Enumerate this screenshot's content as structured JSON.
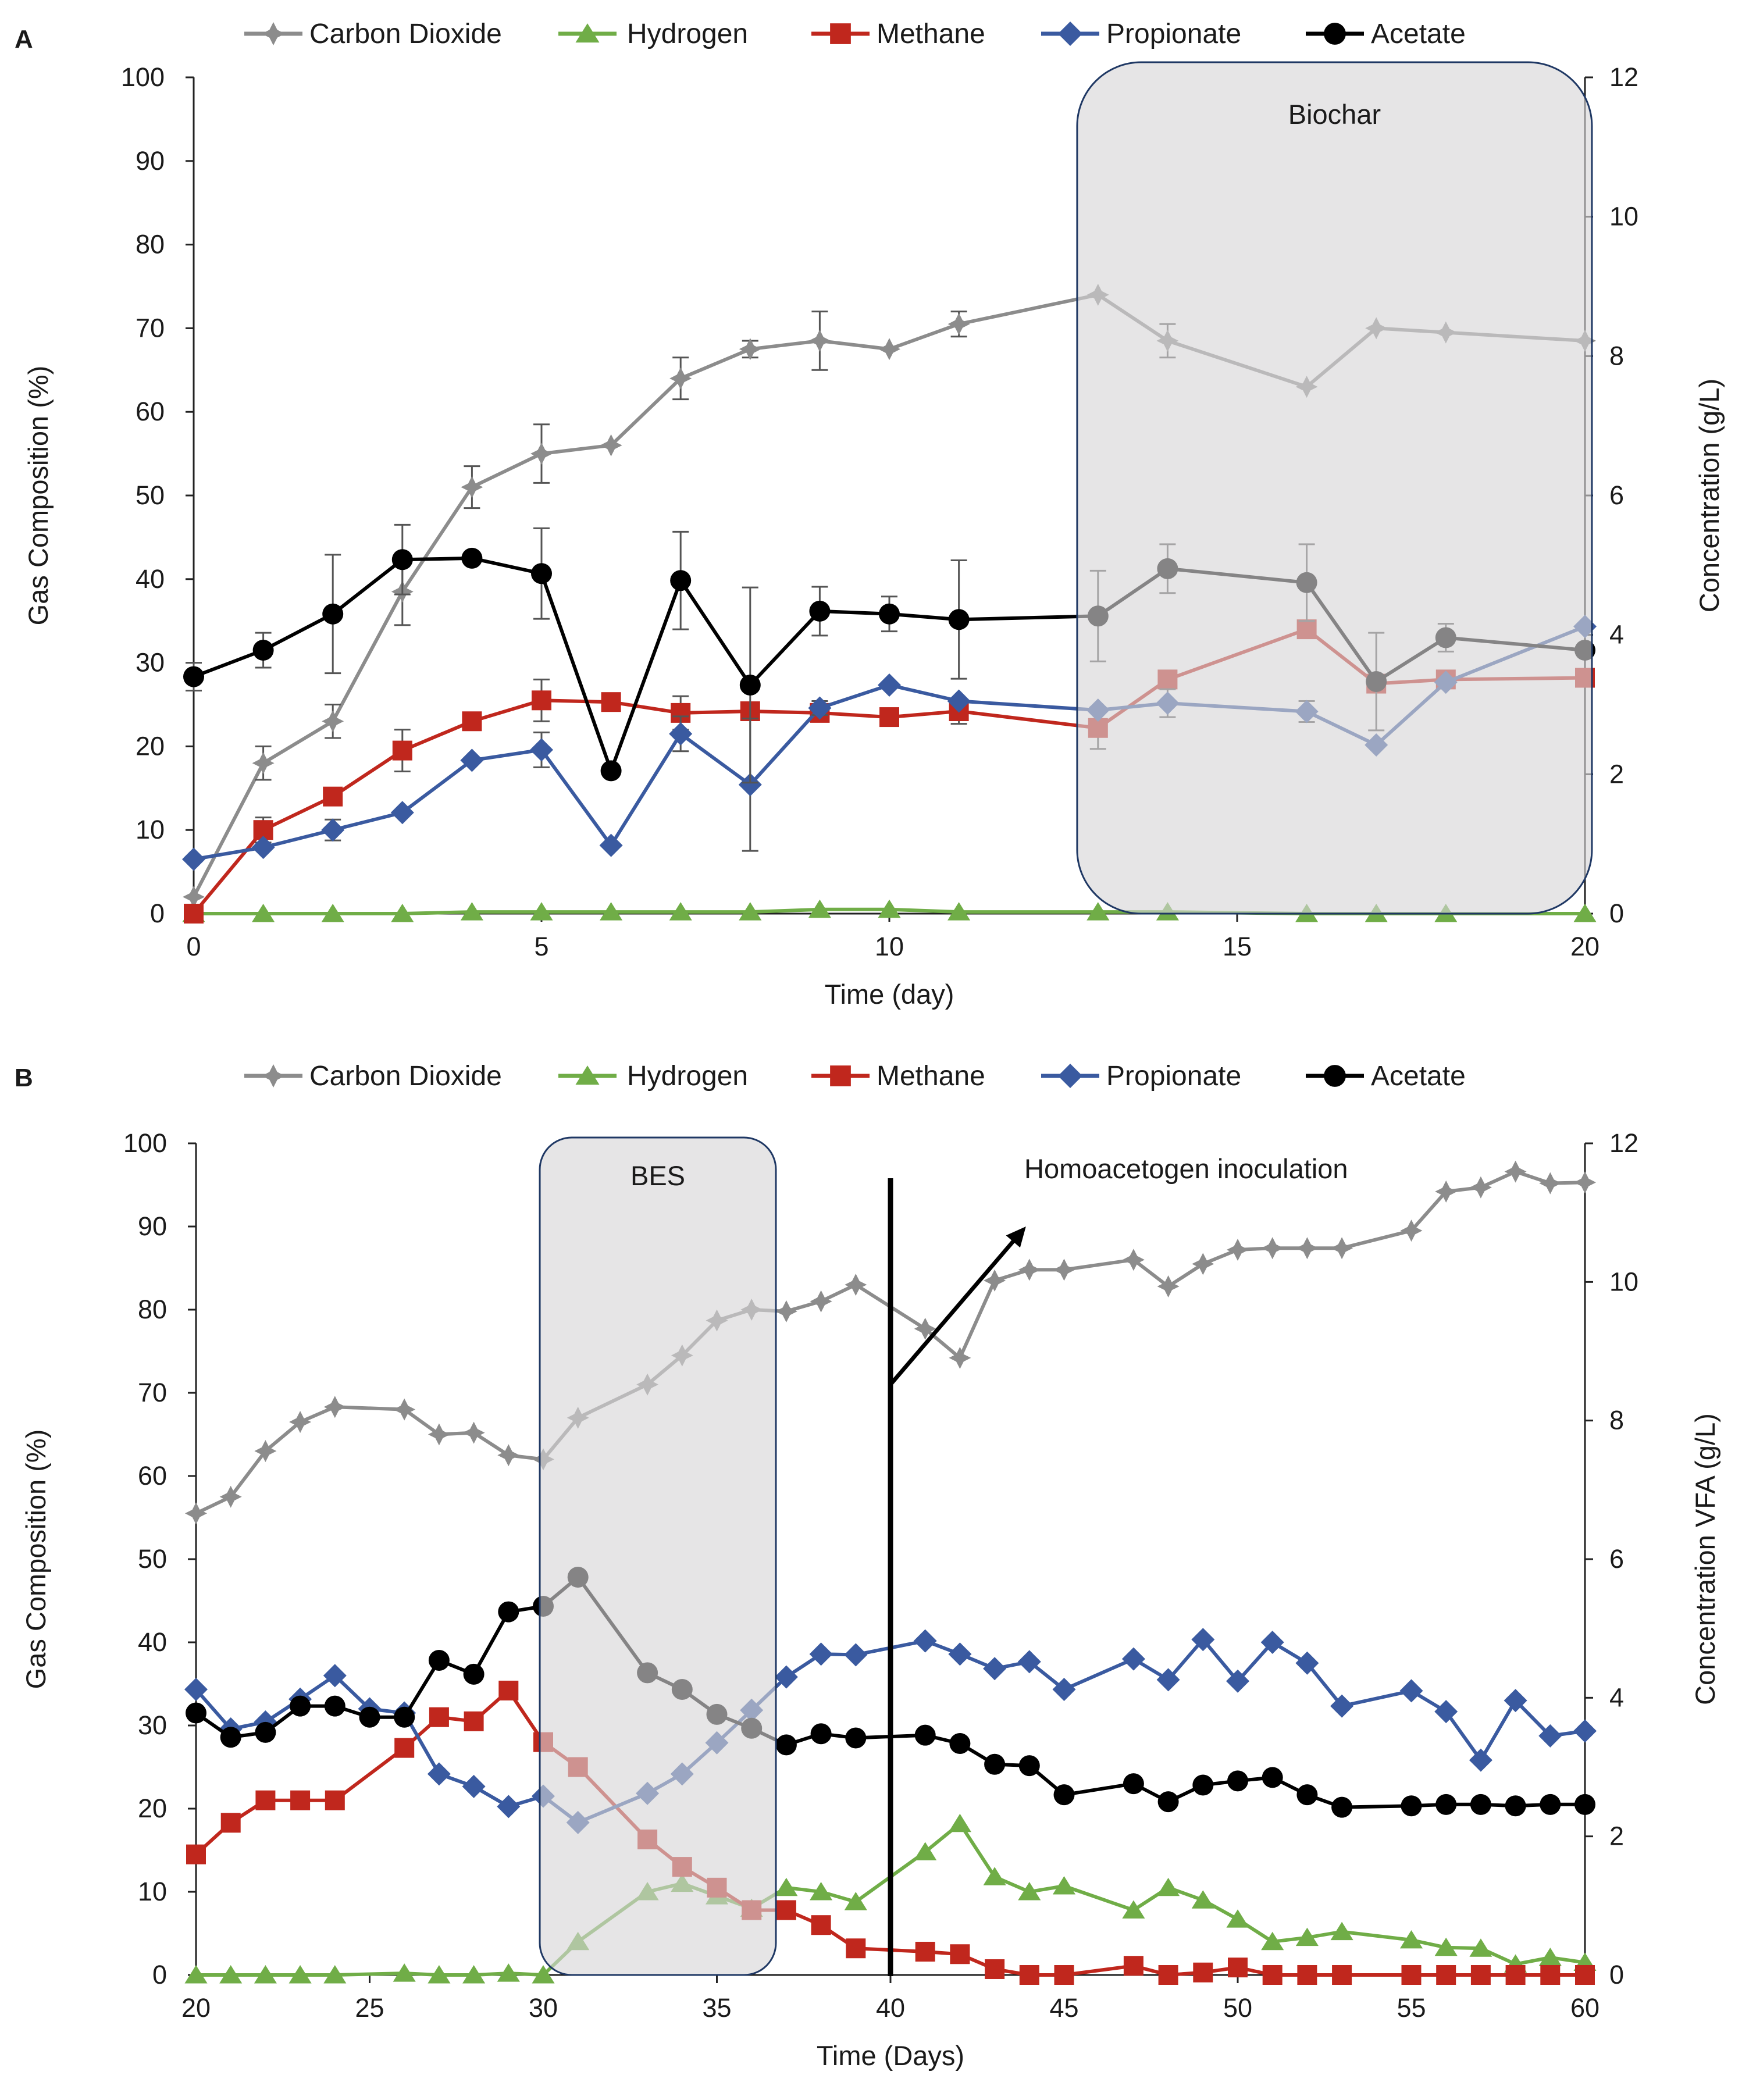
{
  "colors": {
    "co2": "#8c8c8c",
    "h2": "#70ad47",
    "ch4": "#c0271d",
    "prop": "#3a5aa0",
    "acet": "#000000",
    "shade_fill": "#d6d5d6",
    "shade_stroke": "#1f3864"
  },
  "chart_data": [
    {
      "type": "line",
      "panel": "A",
      "xlabel": "Time (day)",
      "ylabel": "Gas Composition (%)",
      "y2label": "Concentration (g/L)",
      "xlim": [
        0,
        20
      ],
      "ylim": [
        0,
        100
      ],
      "y2lim": [
        0,
        12
      ],
      "xticks": [
        "0",
        "5",
        "10",
        "15",
        "20"
      ],
      "yticks": [
        "0",
        "10",
        "20",
        "30",
        "40",
        "50",
        "60",
        "70",
        "80",
        "90",
        "100"
      ],
      "y2ticks": [
        "0",
        "2",
        "4",
        "6",
        "8",
        "10",
        "12"
      ],
      "legend": [
        "Carbon Dioxide",
        "Hydrogen",
        "Methane",
        "Propionate",
        "Acetate"
      ],
      "shade": {
        "label": "Biochar",
        "x0": 12.7,
        "x1": 20.1
      },
      "series": [
        {
          "name": "Carbon Dioxide",
          "axis": "left",
          "marker": "star",
          "color_key": "co2",
          "x": [
            0,
            1,
            2,
            3,
            4,
            5,
            6,
            7,
            8,
            9,
            10,
            11,
            13,
            14,
            16,
            17,
            18,
            20
          ],
          "y": [
            2,
            18,
            23,
            38.5,
            51,
            55,
            56,
            64,
            67.5,
            68.5,
            67.5,
            70.5,
            74,
            68.5,
            63,
            70,
            69.5,
            68.5
          ],
          "err": [
            0,
            2,
            2,
            4,
            2.5,
            3.5,
            0,
            2.5,
            1,
            3.5,
            0,
            1.5,
            0,
            2,
            0,
            0,
            0,
            0
          ]
        },
        {
          "name": "Hydrogen",
          "axis": "left",
          "marker": "triangle",
          "color_key": "h2",
          "x": [
            0,
            1,
            2,
            3,
            4,
            5,
            6,
            7,
            8,
            9,
            10,
            11,
            13,
            14,
            16,
            17,
            18,
            20
          ],
          "y": [
            0,
            0,
            0,
            0,
            0.2,
            0.2,
            0.2,
            0.2,
            0.2,
            0.5,
            0.5,
            0.2,
            0.2,
            0.2,
            0,
            0,
            0,
            0
          ],
          "err": []
        },
        {
          "name": "Methane",
          "axis": "left",
          "marker": "square",
          "color_key": "ch4",
          "x": [
            0,
            1,
            2,
            3,
            4,
            5,
            6,
            7,
            8,
            9,
            10,
            11,
            13,
            14,
            16,
            17,
            18,
            20
          ],
          "y": [
            0,
            10,
            14,
            19.5,
            23,
            25.5,
            25.3,
            24,
            24.2,
            24,
            23.5,
            24.2,
            22.2,
            28,
            34,
            27.5,
            28,
            28.2
          ],
          "err": [
            0,
            1.5,
            1,
            2.5,
            1,
            2.5,
            0,
            2,
            0,
            0,
            1,
            1.5,
            2.5,
            0,
            0,
            0,
            0,
            0
          ]
        },
        {
          "name": "Propionate",
          "axis": "right",
          "marker": "diamond",
          "color_key": "prop",
          "x": [
            0,
            1,
            2,
            3,
            4,
            5,
            6,
            7,
            8,
            9,
            10,
            11,
            13,
            14,
            16,
            17,
            18,
            20
          ],
          "y": [
            0.78,
            0.95,
            1.2,
            1.45,
            2.2,
            2.35,
            0.98,
            2.58,
            1.85,
            2.95,
            3.28,
            3.05,
            2.92,
            3.02,
            2.9,
            2.42,
            3.32,
            4.12
          ],
          "err": [
            0,
            0,
            0.15,
            0,
            0,
            0.25,
            0,
            0.25,
            0.95,
            0.1,
            0,
            0,
            0,
            0.2,
            0.15,
            0,
            0,
            0
          ]
        },
        {
          "name": "Acetate",
          "axis": "right",
          "marker": "circle",
          "color_key": "acet",
          "x": [
            0,
            1,
            2,
            3,
            4,
            5,
            6,
            7,
            8,
            9,
            10,
            11,
            13,
            14,
            16,
            17,
            18,
            20
          ],
          "y": [
            3.4,
            3.78,
            4.3,
            5.08,
            5.1,
            4.88,
            2.05,
            4.78,
            3.28,
            4.34,
            4.3,
            4.22,
            4.27,
            4.95,
            4.75,
            3.33,
            3.96,
            3.78
          ],
          "err": [
            0.2,
            0.25,
            0.85,
            0.5,
            0,
            0.65,
            0,
            0.7,
            1.4,
            0.35,
            0.25,
            0.85,
            0.65,
            0.35,
            0.55,
            0.7,
            0.2,
            0
          ]
        }
      ]
    },
    {
      "type": "line",
      "panel": "B",
      "xlabel": "Time (Days)",
      "ylabel": "Gas Composition (%)",
      "y2label": "Concentration VFA (g/L)",
      "xlim": [
        20,
        60
      ],
      "ylim": [
        0,
        100
      ],
      "y2lim": [
        0,
        12
      ],
      "xticks": [
        "20",
        "25",
        "30",
        "35",
        "40",
        "45",
        "50",
        "55",
        "60"
      ],
      "yticks": [
        "0",
        "10",
        "20",
        "30",
        "40",
        "50",
        "60",
        "70",
        "80",
        "90",
        "100"
      ],
      "y2ticks": [
        "0",
        "2",
        "4",
        "6",
        "8",
        "10",
        "12"
      ],
      "legend": [
        "Carbon Dioxide",
        "Hydrogen",
        "Methane",
        "Propionate",
        "Acetate"
      ],
      "shade": {
        "label": "BES",
        "x0": 29.9,
        "x1": 36.7
      },
      "annotation": {
        "text": "Homoacetogen inoculation",
        "line_x": 40,
        "arrow_from": [
          40,
          71
        ],
        "arrow_to": [
          43.9,
          90
        ]
      },
      "series": [
        {
          "name": "Carbon Dioxide",
          "axis": "left",
          "marker": "star",
          "color_key": "co2",
          "x": [
            20,
            21,
            22,
            23,
            24,
            26,
            27,
            28,
            29,
            30,
            31,
            33,
            34,
            35,
            36,
            37,
            38,
            39,
            41,
            42,
            43,
            44,
            45,
            47,
            48,
            49,
            50,
            51,
            52,
            53,
            55,
            56,
            57,
            58,
            59,
            60
          ],
          "y": [
            55.5,
            57.5,
            63,
            66.5,
            68.3,
            68,
            65,
            65.2,
            62.5,
            62,
            67,
            71,
            74.5,
            78.7,
            80,
            79.8,
            81,
            83,
            77.7,
            74.2,
            83.5,
            84.8,
            84.8,
            86,
            82.8,
            85.5,
            87.2,
            87.4,
            87.4,
            87.4,
            89.5,
            94.2,
            94.7,
            96.6,
            95.2,
            95.3
          ]
        },
        {
          "name": "Hydrogen",
          "axis": "left",
          "marker": "triangle",
          "color_key": "h2",
          "x": [
            20,
            21,
            22,
            23,
            24,
            26,
            27,
            28,
            29,
            30,
            31,
            33,
            34,
            35,
            36,
            37,
            38,
            39,
            41,
            42,
            43,
            44,
            45,
            47,
            48,
            49,
            50,
            51,
            52,
            53,
            55,
            56,
            57,
            58,
            59,
            60
          ],
          "y": [
            0,
            0,
            0,
            0,
            0,
            0.2,
            0,
            0,
            0.2,
            0,
            4,
            10,
            11,
            9.5,
            8,
            10.5,
            10,
            8.8,
            14.8,
            18.2,
            11.8,
            10,
            10.7,
            7.8,
            10.5,
            9,
            6.7,
            4,
            4.5,
            5.2,
            4.2,
            3.3,
            3.2,
            1.3,
            2.1,
            1.5
          ]
        },
        {
          "name": "Methane",
          "axis": "left",
          "marker": "square",
          "color_key": "ch4",
          "x": [
            20,
            21,
            22,
            23,
            24,
            26,
            27,
            28,
            29,
            30,
            31,
            33,
            34,
            35,
            36,
            37,
            38,
            39,
            41,
            42,
            43,
            44,
            45,
            47,
            48,
            49,
            50,
            51,
            52,
            53,
            55,
            56,
            57,
            58,
            59,
            60
          ],
          "y": [
            14.5,
            18.3,
            21,
            21,
            21,
            27.3,
            31,
            30.5,
            34.2,
            28,
            25,
            16.3,
            13,
            10.5,
            7.8,
            7.8,
            6,
            3.2,
            2.8,
            2.5,
            0.7,
            0,
            0,
            1.1,
            0,
            0.3,
            0.9,
            0,
            0,
            0,
            0,
            0,
            0,
            0,
            0,
            0
          ]
        },
        {
          "name": "Propionate",
          "axis": "right",
          "marker": "diamond",
          "color_key": "prop",
          "x": [
            20,
            21,
            22,
            23,
            24,
            25,
            26,
            27,
            28,
            29,
            30,
            31,
            33,
            34,
            35,
            36,
            37,
            38,
            39,
            41,
            42,
            43,
            44,
            45,
            47,
            48,
            49,
            50,
            51,
            52,
            53,
            55,
            56,
            57,
            58,
            59,
            60
          ],
          "y": [
            4.12,
            3.55,
            3.65,
            3.98,
            4.32,
            3.84,
            3.78,
            2.9,
            2.72,
            2.43,
            2.58,
            2.2,
            2.62,
            2.9,
            3.35,
            3.82,
            4.3,
            4.63,
            4.62,
            4.82,
            4.63,
            4.42,
            4.52,
            4.12,
            4.56,
            4.26,
            4.84,
            4.24,
            4.8,
            4.5,
            3.88,
            4.1,
            3.8,
            3.1,
            3.96,
            3.45,
            3.52
          ]
        },
        {
          "name": "Acetate",
          "axis": "right",
          "marker": "circle",
          "color_key": "acet",
          "x": [
            20,
            21,
            22,
            23,
            24,
            25,
            26,
            27,
            28,
            29,
            30,
            31,
            33,
            34,
            35,
            36,
            37,
            38,
            39,
            41,
            42,
            43,
            44,
            45,
            47,
            48,
            49,
            50,
            51,
            52,
            53,
            55,
            56,
            57,
            58,
            59,
            60
          ],
          "y": [
            3.78,
            3.43,
            3.5,
            3.88,
            3.88,
            3.72,
            3.72,
            4.54,
            4.34,
            5.24,
            5.32,
            5.74,
            4.36,
            4.12,
            3.76,
            3.56,
            3.32,
            3.48,
            3.42,
            3.46,
            3.34,
            3.04,
            3.02,
            2.6,
            2.76,
            2.5,
            2.74,
            2.8,
            2.85,
            2.6,
            2.42,
            2.44,
            2.46,
            2.46,
            2.44,
            2.46,
            2.46
          ]
        }
      ]
    }
  ]
}
